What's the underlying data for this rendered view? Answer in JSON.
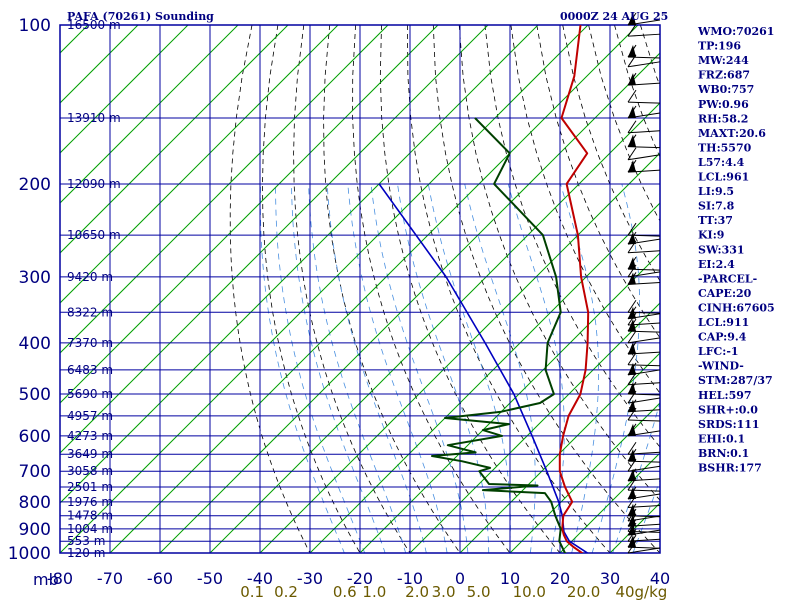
{
  "header": {
    "title": "PAFA (70261) Sounding",
    "time": "0000Z 24 AUG 25"
  },
  "colors": {
    "frame": "#0000a0",
    "isotherm": "#00a000",
    "dry_adiabat": "#000000",
    "moist_adiabat": "#4a90e0",
    "temperature": "#c00000",
    "dewpoint": "#004000",
    "parcel": "#0000c0",
    "mixing_label": "#6b5a00"
  },
  "chart_data": {
    "type": "skew-t",
    "ylabel": "mb",
    "pressure_levels": [
      100,
      200,
      300,
      400,
      500,
      600,
      700,
      800,
      900,
      1000
    ],
    "pressure_labels": [
      "100",
      "200",
      "300",
      "400",
      "500",
      "600",
      "700",
      "800",
      "900",
      "1000"
    ],
    "xlim": [
      -80,
      40
    ],
    "temp_ticks": [
      -80,
      -70,
      -60,
      -50,
      -40,
      -30,
      -20,
      -10,
      0,
      10,
      20,
      30,
      40
    ],
    "temp_labels": [
      "-80",
      "-70",
      "-60",
      "-50",
      "-40",
      "-30",
      "-20",
      "-10",
      "0",
      "10",
      "20",
      "30",
      "40"
    ],
    "height_labels": [
      {
        "p": 100,
        "label": "16500 m"
      },
      {
        "p": 150,
        "label": "13910 m"
      },
      {
        "p": 200,
        "label": "12090 m"
      },
      {
        "p": 250,
        "label": "10650 m"
      },
      {
        "p": 300,
        "label": "9420 m"
      },
      {
        "p": 350,
        "label": "8322 m"
      },
      {
        "p": 400,
        "label": "7370 m"
      },
      {
        "p": 450,
        "label": "6483 m"
      },
      {
        "p": 500,
        "label": "5690 m"
      },
      {
        "p": 550,
        "label": "4957 m"
      },
      {
        "p": 600,
        "label": "4273 m"
      },
      {
        "p": 650,
        "label": "3649 m"
      },
      {
        "p": 700,
        "label": "3058 m"
      },
      {
        "p": 750,
        "label": "2501 m"
      },
      {
        "p": 800,
        "label": "1976 m"
      },
      {
        "p": 850,
        "label": "1478 m"
      },
      {
        "p": 900,
        "label": "1004 m"
      },
      {
        "p": 950,
        "label": "553 m"
      },
      {
        "p": 1000,
        "label": "120 m"
      }
    ],
    "mixing_ratio_labels": [
      {
        "w": 0.1,
        "label": "0.1"
      },
      {
        "w": 0.2,
        "label": "0.2"
      },
      {
        "w": 0.6,
        "label": "0.6"
      },
      {
        "w": 1.0,
        "label": "1.0"
      },
      {
        "w": 2.0,
        "label": "2.0"
      },
      {
        "w": 3.0,
        "label": "3.0"
      },
      {
        "w": 5.0,
        "label": "5.0"
      },
      {
        "w": 10.0,
        "label": "10.0"
      },
      {
        "w": 20.0,
        "label": "20.0"
      },
      {
        "w": 40.0,
        "label": "40g/kg"
      }
    ],
    "temperature": [
      {
        "p": 1010,
        "t": 24.6
      },
      {
        "p": 1000,
        "t": 24.4
      },
      {
        "p": 975,
        "t": 21.6
      },
      {
        "p": 950,
        "t": 19.0
      },
      {
        "p": 925,
        "t": 17.2
      },
      {
        "p": 900,
        "t": 15.6
      },
      {
        "p": 850,
        "t": 13.2
      },
      {
        "p": 800,
        "t": 12.2
      },
      {
        "p": 750,
        "t": 7.8
      },
      {
        "p": 700,
        "t": 3.6
      },
      {
        "p": 650,
        "t": 0.2
      },
      {
        "p": 600,
        "t": -2.8
      },
      {
        "p": 550,
        "t": -5.7
      },
      {
        "p": 500,
        "t": -7.7
      },
      {
        "p": 450,
        "t": -11.5
      },
      {
        "p": 400,
        "t": -16.5
      },
      {
        "p": 350,
        "t": -22.5
      },
      {
        "p": 300,
        "t": -31.0
      },
      {
        "p": 250,
        "t": -40.0
      },
      {
        "p": 200,
        "t": -52.5
      },
      {
        "p": 175,
        "t": -54.5
      },
      {
        "p": 150,
        "t": -66.7
      },
      {
        "p": 125,
        "t": -72.5
      },
      {
        "p": 100,
        "t": -81.5
      }
    ],
    "dewpoint": [
      {
        "p": 1010,
        "t": 22.3
      },
      {
        "p": 1000,
        "t": 21.0
      },
      {
        "p": 950,
        "t": 17.5
      },
      {
        "p": 900,
        "t": 15.3
      },
      {
        "p": 850,
        "t": 11.6
      },
      {
        "p": 800,
        "t": 8.0
      },
      {
        "p": 770,
        "t": 5.0
      },
      {
        "p": 760,
        "t": -8.0
      },
      {
        "p": 745,
        "t": 2.0
      },
      {
        "p": 740,
        "t": -8.0
      },
      {
        "p": 700,
        "t": -12.5
      },
      {
        "p": 690,
        "t": -11.0
      },
      {
        "p": 670,
        "t": -18.0
      },
      {
        "p": 655,
        "t": -25.0
      },
      {
        "p": 645,
        "t": -17.0
      },
      {
        "p": 625,
        "t": -24.0
      },
      {
        "p": 600,
        "t": -15.0
      },
      {
        "p": 585,
        "t": -20.0
      },
      {
        "p": 570,
        "t": -16.0
      },
      {
        "p": 555,
        "t": -30.0
      },
      {
        "p": 540,
        "t": -20.0
      },
      {
        "p": 520,
        "t": -14.0
      },
      {
        "p": 500,
        "t": -13.0
      },
      {
        "p": 450,
        "t": -19.5
      },
      {
        "p": 400,
        "t": -24.5
      },
      {
        "p": 350,
        "t": -28.0
      },
      {
        "p": 300,
        "t": -36.0
      },
      {
        "p": 250,
        "t": -47.0
      },
      {
        "p": 200,
        "t": -67.0
      },
      {
        "p": 175,
        "t": -70.0
      },
      {
        "p": 150,
        "t": -84.0
      }
    ],
    "parcel": [
      {
        "p": 1000,
        "t": 25.5
      },
      {
        "p": 950,
        "t": 19.5
      },
      {
        "p": 911,
        "t": 16.5
      },
      {
        "p": 850,
        "t": 13.0
      },
      {
        "p": 800,
        "t": 9.5
      },
      {
        "p": 700,
        "t": 1.0
      },
      {
        "p": 600,
        "t": -9.0
      },
      {
        "p": 500,
        "t": -21.0
      },
      {
        "p": 400,
        "t": -37.0
      },
      {
        "p": 300,
        "t": -58.0
      },
      {
        "p": 200,
        "t": -90.0
      }
    ],
    "wind_barb_levels": [
      100,
      105,
      115,
      120,
      130,
      140,
      150,
      160,
      170,
      180,
      190,
      250,
      260,
      270,
      290,
      300,
      310,
      350,
      360,
      370,
      380,
      400,
      420,
      440,
      460,
      480,
      500,
      520,
      540,
      560,
      600,
      650,
      670,
      700,
      730,
      760,
      790,
      820,
      850,
      870,
      890,
      910,
      925,
      950,
      975,
      1000
    ]
  },
  "indices": [
    "WMO:70261",
    "TP:196",
    "MW:244",
    "FRZ:687",
    "WB0:757",
    "PW:0.96",
    "RH:58.2",
    "MAXT:20.6",
    "TH:5570",
    "L57:4.4",
    "LCL:961",
    "LI:9.5",
    "SI:7.8",
    "TT:37",
    "KI:9",
    "SW:331",
    "EI:2.4",
    "-PARCEL-",
    "CAPE:20",
    "CINH:67605",
    "LCL:911",
    "CAP:9.4",
    "LFC:-1",
    "-WIND-",
    "STM:287/37",
    "HEL:597",
    "SHR+:0.0",
    "SRDS:111",
    "EHI:0.1",
    "BRN:0.1",
    "BSHR:177"
  ]
}
